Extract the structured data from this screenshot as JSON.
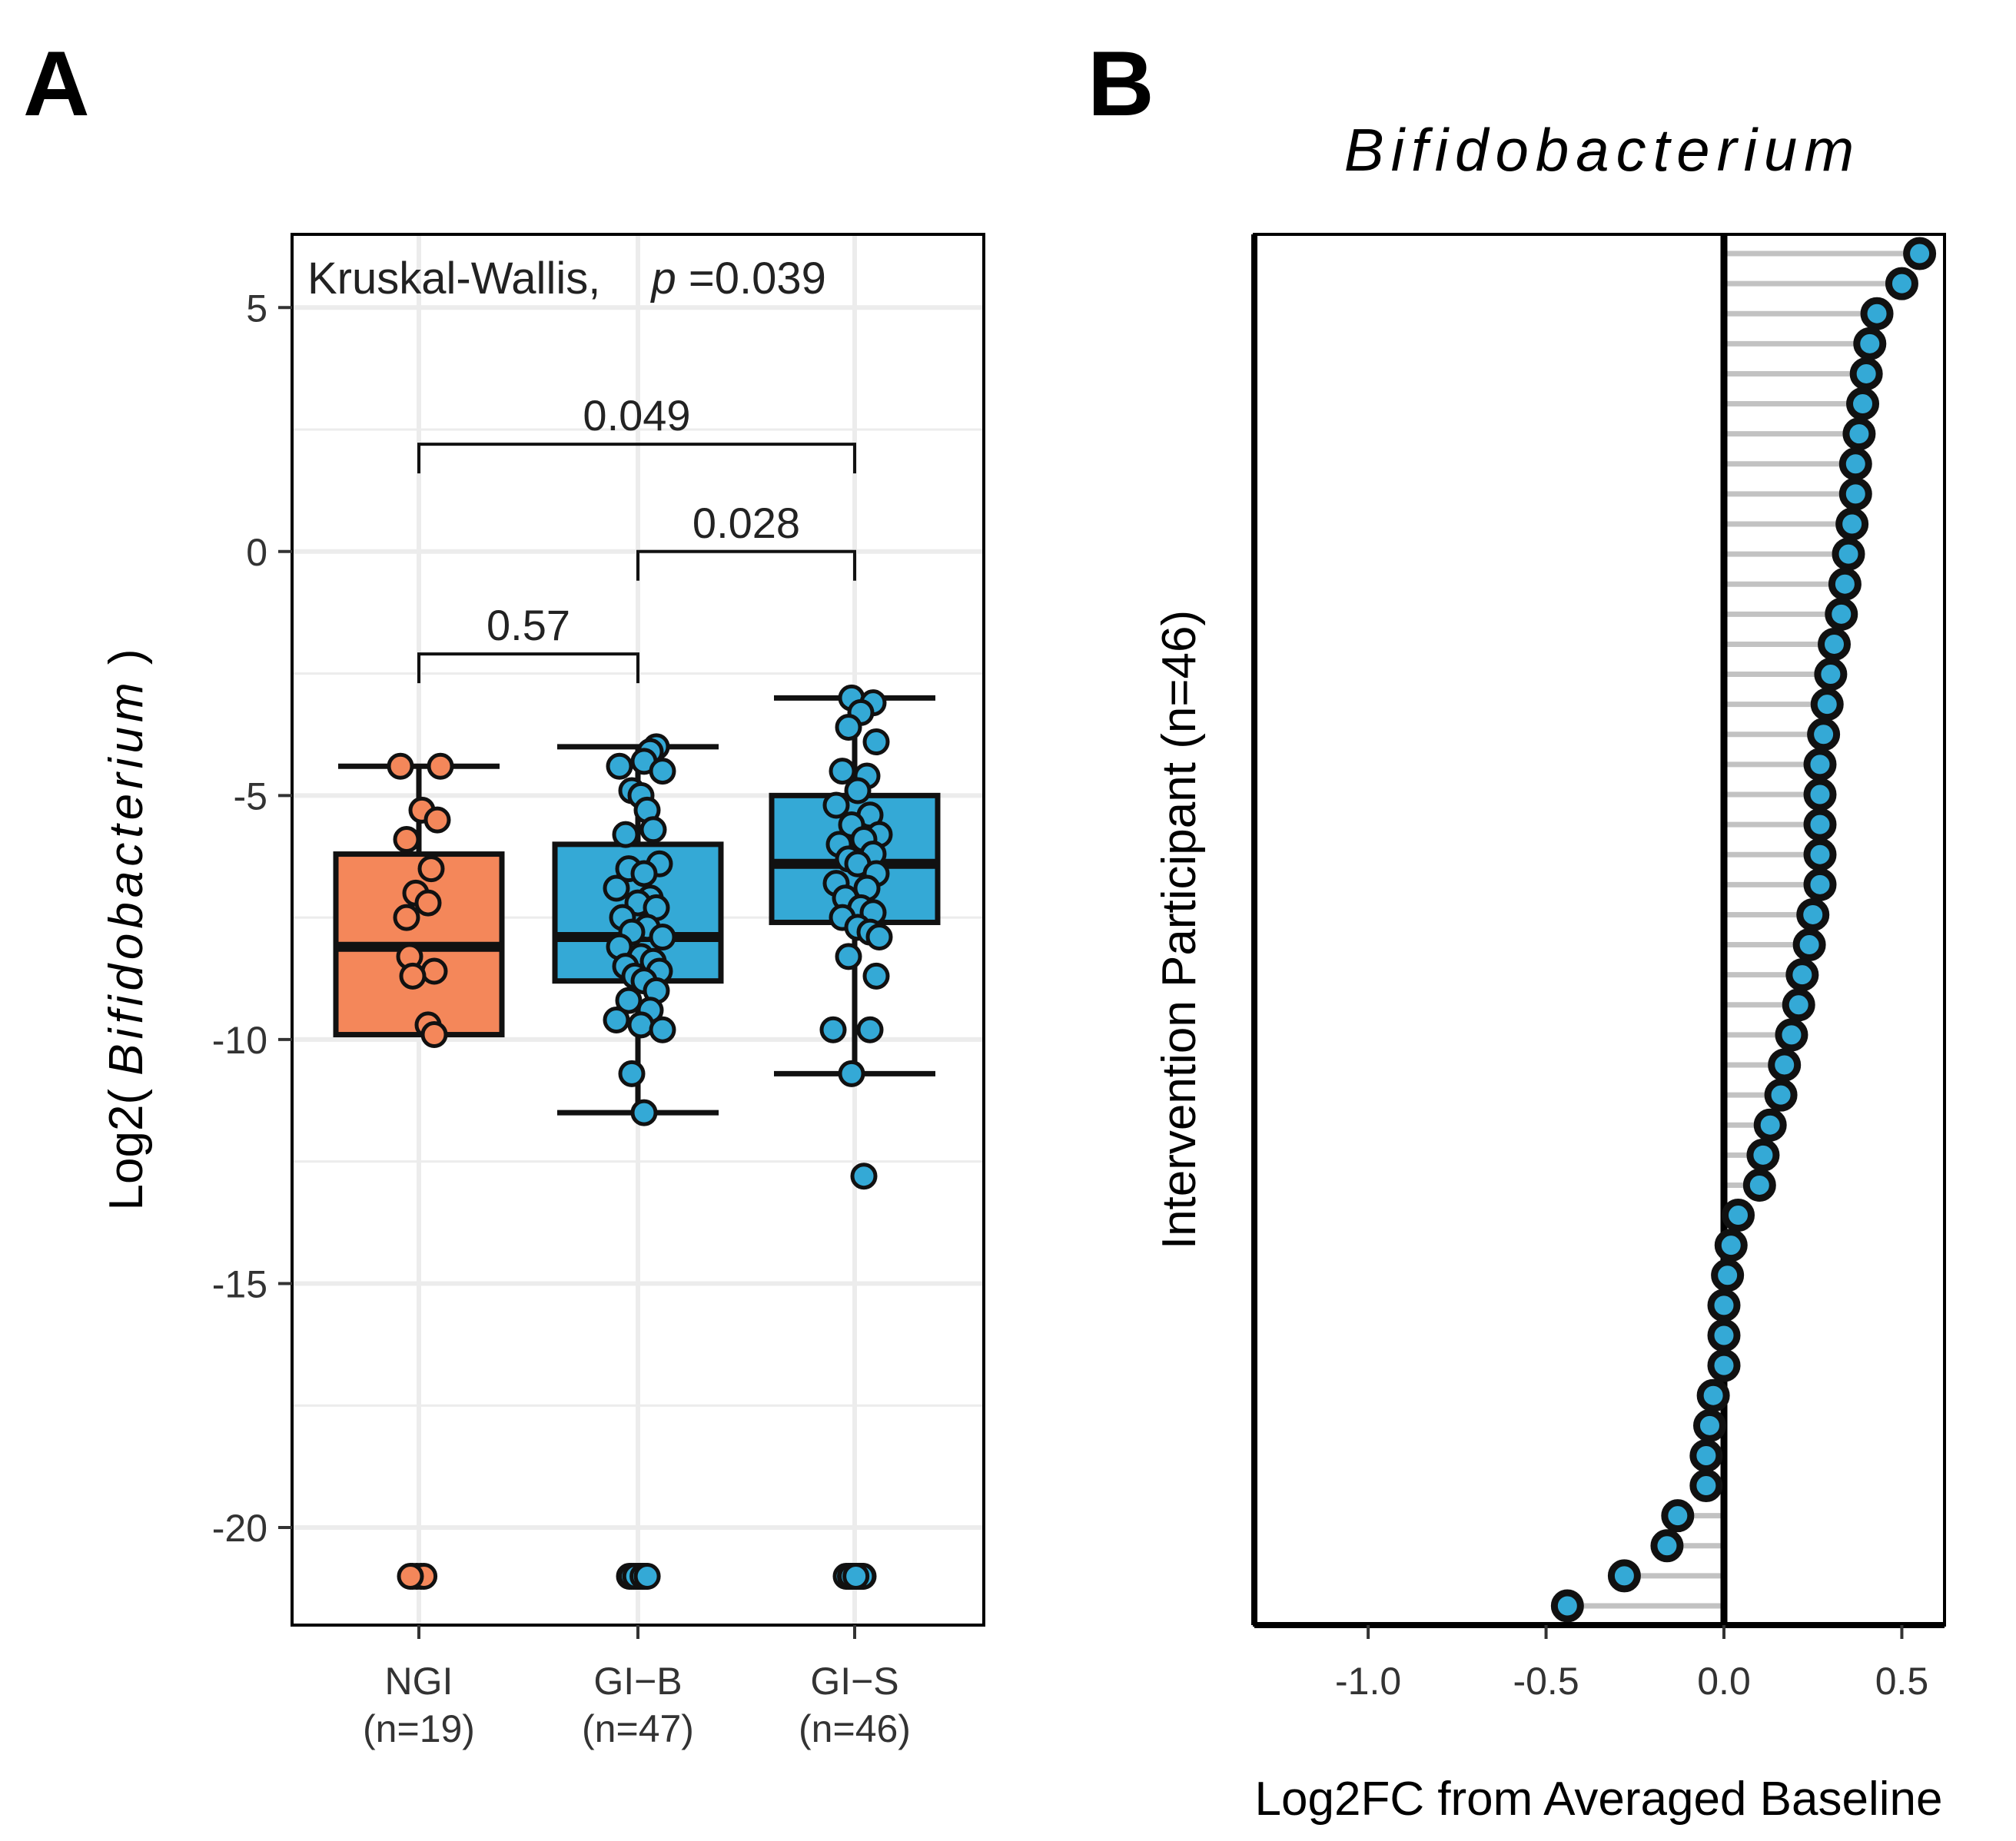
{
  "panels": {
    "a_label": "A",
    "b_label": "B"
  },
  "chart_data": [
    {
      "type": "box",
      "panel": "A",
      "title": "",
      "ylabel_prefix": "Log2( ",
      "ylabel_italic": "Bifidobacterium",
      "ylabel_suffix": " )",
      "ylim": [
        -22,
        6.5
      ],
      "yticks": [
        {
          "value": 5,
          "label": "5"
        },
        {
          "value": 0,
          "label": "0"
        },
        {
          "value": -5,
          "label": "-5"
        },
        {
          "value": -10,
          "label": "-10"
        },
        {
          "value": -15,
          "label": "-15"
        },
        {
          "value": -20,
          "label": "-20"
        }
      ],
      "annotation": {
        "test": "Kruskal-Wallis,",
        "p_symbol": "p",
        "p_value": "=0.039"
      },
      "groups": [
        {
          "name": "NGI",
          "n_label": "(n=19)",
          "color": "#f4875a",
          "box": {
            "q1": -9.9,
            "median": -8.1,
            "q3": -6.2,
            "whisker_low": -9.9,
            "whisker_high": -4.4
          },
          "points": [
            -4.4,
            -4.4,
            -5.3,
            -5.5,
            -5.9,
            -6.5,
            -7.0,
            -7.2,
            -7.5,
            -8.3,
            -8.6,
            -8.7,
            -9.7,
            -9.9,
            -21.0,
            -21.0,
            -21.0,
            -21.0,
            -21.0
          ],
          "offsets": [
            -0.3,
            0.35,
            0.05,
            0.3,
            -0.2,
            0.2,
            -0.05,
            0.15,
            -0.2,
            -0.15,
            0.25,
            -0.1,
            0.15,
            0.25,
            -0.15,
            -0.05,
            0.05,
            0.12,
            -0.2
          ]
        },
        {
          "name": "GI−B",
          "n_label": "(n=47)",
          "color": "#34a9d6",
          "box": {
            "q1": -8.8,
            "median": -7.9,
            "q3": -6.0,
            "whisker_low": -11.5,
            "whisker_high": -4.0
          },
          "points": [
            -4.0,
            -4.1,
            -4.3,
            -4.4,
            -4.5,
            -4.9,
            -5.0,
            -5.3,
            -5.7,
            -5.8,
            -6.4,
            -6.5,
            -6.6,
            -6.9,
            -7.1,
            -7.2,
            -7.3,
            -7.5,
            -7.7,
            -7.8,
            -7.9,
            -8.1,
            -8.3,
            -8.4,
            -8.5,
            -8.6,
            -8.7,
            -8.8,
            -9.0,
            -9.2,
            -9.4,
            -9.6,
            -9.7,
            -9.8,
            -10.7,
            -11.5,
            -21.0,
            -21.0,
            -21.0,
            -21.0,
            -21.0,
            -21.0,
            -21.0,
            -21.0,
            -21.0,
            -21.0,
            -21.0
          ],
          "offsets": [
            0.3,
            0.2,
            0.1,
            -0.3,
            0.4,
            -0.1,
            0.05,
            0.15,
            0.25,
            -0.2,
            0.35,
            -0.15,
            0.1,
            -0.35,
            0.2,
            0.0,
            0.3,
            -0.25,
            0.15,
            -0.1,
            0.4,
            -0.3,
            0.05,
            0.25,
            -0.2,
            0.35,
            -0.05,
            0.1,
            0.3,
            -0.15,
            0.2,
            -0.35,
            0.05,
            0.4,
            -0.1,
            0.1,
            -0.2,
            -0.1,
            0.0,
            0.1,
            0.2,
            -0.15,
            0.05,
            0.15,
            -0.05,
            0.12,
            0.22
          ],
          "points_note": "first points listed are main cluster"
        },
        {
          "name": "GI−S",
          "n_label": "(n=46)",
          "color": "#34a9d6",
          "box": {
            "q1": -7.6,
            "median": -6.4,
            "q3": -5.0,
            "whisker_low": -10.7,
            "whisker_high": -3.0
          },
          "points": [
            -3.0,
            -3.1,
            -3.3,
            -3.6,
            -3.9,
            -4.5,
            -4.6,
            -4.9,
            -5.2,
            -5.4,
            -5.6,
            -5.8,
            -5.9,
            -6.0,
            -6.2,
            -6.3,
            -6.4,
            -6.6,
            -6.8,
            -6.9,
            -7.1,
            -7.3,
            -7.4,
            -7.5,
            -7.7,
            -7.8,
            -7.9,
            -8.3,
            -8.7,
            -9.8,
            -9.8,
            -10.7,
            -12.8,
            -21.0,
            -21.0,
            -21.0,
            -21.0,
            -21.0,
            -21.0,
            -21.0,
            -21.0,
            -21.0,
            -21.0,
            -21.0,
            -21.0,
            -21.0
          ],
          "offsets": [
            -0.05,
            0.3,
            0.1,
            -0.1,
            0.35,
            -0.2,
            0.2,
            0.05,
            -0.3,
            0.25,
            -0.05,
            0.4,
            0.15,
            -0.25,
            0.3,
            -0.1,
            0.05,
            0.35,
            -0.3,
            0.2,
            -0.15,
            0.1,
            0.3,
            -0.2,
            0.05,
            0.25,
            0.4,
            -0.1,
            0.35,
            -0.35,
            0.25,
            -0.05,
            0.15,
            -0.15,
            -0.05,
            0.05,
            0.12,
            -0.2,
            0.0,
            0.1,
            0.2,
            -0.1,
            0.08,
            0.18,
            -0.08,
            0.03
          ]
        }
      ],
      "comparisons": [
        {
          "from": 0,
          "to": 2,
          "y": 2.2,
          "label": "0.049"
        },
        {
          "from": 1,
          "to": 2,
          "y": 0.0,
          "label": "0.028"
        },
        {
          "from": 0,
          "to": 1,
          "y": -2.1,
          "label": "0.57"
        }
      ],
      "grid": true
    },
    {
      "type": "lollipop",
      "panel": "B",
      "title": "Bifidobacterium",
      "xlabel": "Log2FC from Averaged Baseline",
      "ylabel": "Intervention Participant (n=46)",
      "xlim": [
        -1.32,
        0.62
      ],
      "xticks": [
        {
          "value": -1.0,
          "label": "-1.0"
        },
        {
          "value": -0.5,
          "label": "-0.5"
        },
        {
          "value": 0.0,
          "label": "0.0"
        },
        {
          "value": 0.5,
          "label": "0.5"
        }
      ],
      "reference_line": 0,
      "color": "#34a9d6",
      "values_top_to_bottom": [
        0.55,
        0.5,
        0.43,
        0.41,
        0.4,
        0.39,
        0.38,
        0.37,
        0.37,
        0.36,
        0.35,
        0.34,
        0.33,
        0.31,
        0.3,
        0.29,
        0.28,
        0.27,
        0.27,
        0.27,
        0.27,
        0.27,
        0.25,
        0.24,
        0.22,
        0.21,
        0.19,
        0.17,
        0.16,
        0.13,
        0.11,
        0.1,
        0.04,
        0.02,
        0.01,
        0.0,
        0.0,
        0.0,
        -0.03,
        -0.04,
        -0.05,
        -0.05,
        -0.13,
        -0.16,
        -0.28,
        -0.44
      ]
    }
  ]
}
